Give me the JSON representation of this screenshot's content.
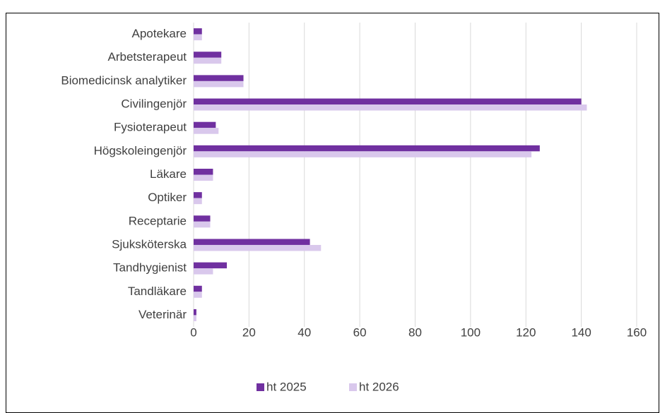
{
  "chart_data": {
    "type": "barh",
    "categories": [
      "Apotekare",
      "Arbetsterapeut",
      "Biomedicinsk analytiker",
      "Civilingenjör",
      "Fysioterapeut",
      "Högskoleingenjör",
      "Läkare",
      "Optiker",
      "Receptarie",
      "Sjuksköterska",
      "Tandhygienist",
      "Tandläkare",
      "Veterinär"
    ],
    "series": [
      {
        "name": "ht 2025",
        "color": "#7030a0",
        "values": [
          3,
          10,
          18,
          140,
          8,
          125,
          7,
          3,
          6,
          42,
          12,
          3,
          1
        ]
      },
      {
        "name": "ht 2026",
        "color": "#d9c8ec",
        "values": [
          3,
          10,
          18,
          142,
          9,
          122,
          7,
          3,
          6,
          46,
          7,
          3,
          1
        ]
      }
    ],
    "xlim": [
      0,
      160
    ],
    "xticks": [
      0,
      20,
      40,
      60,
      80,
      100,
      120,
      140,
      160
    ],
    "grid": true,
    "legend": "bottom"
  }
}
